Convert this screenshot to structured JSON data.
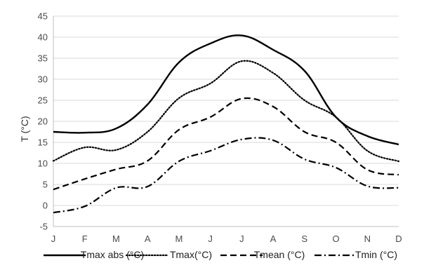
{
  "chart_data": {
    "type": "line",
    "title": "",
    "xlabel": "",
    "ylabel": "T (°C)",
    "categories": [
      "J",
      "F",
      "M",
      "A",
      "M",
      "J",
      "J",
      "A",
      "S",
      "O",
      "N",
      "D"
    ],
    "ylim": [
      -5,
      45
    ],
    "yticks": [
      -5,
      0,
      5,
      10,
      15,
      20,
      25,
      30,
      35,
      40,
      45
    ],
    "grid": "horizontal",
    "legend_position": "bottom",
    "series": [
      {
        "name": "Tmax abs (°C)",
        "style": "solid",
        "values": [
          17.5,
          17.3,
          18.3,
          24,
          34,
          38.5,
          40.4,
          37,
          32,
          21,
          16.5,
          14.5
        ]
      },
      {
        "name": "Tmax(°C)",
        "style": "dotted",
        "values": [
          10.6,
          13.8,
          13.2,
          17.5,
          25.5,
          29,
          34.3,
          31.5,
          25,
          21,
          13,
          10.5
        ]
      },
      {
        "name": "Tmean (°C)",
        "style": "dashed",
        "values": [
          3.8,
          6.3,
          8.6,
          10.6,
          18,
          21,
          25.4,
          23.5,
          17.5,
          15,
          8.5,
          7.3
        ]
      },
      {
        "name": "Tmin (°C)",
        "style": "dashdot",
        "values": [
          -1.7,
          -0.2,
          4.2,
          4.5,
          10.5,
          13,
          15.7,
          15.5,
          11,
          9,
          4.6,
          4.2
        ]
      }
    ]
  },
  "colors": {
    "line": "#000000",
    "grid": "#d9d9d9",
    "axis": "#bfbfbf",
    "text": "#4a4a4a"
  }
}
